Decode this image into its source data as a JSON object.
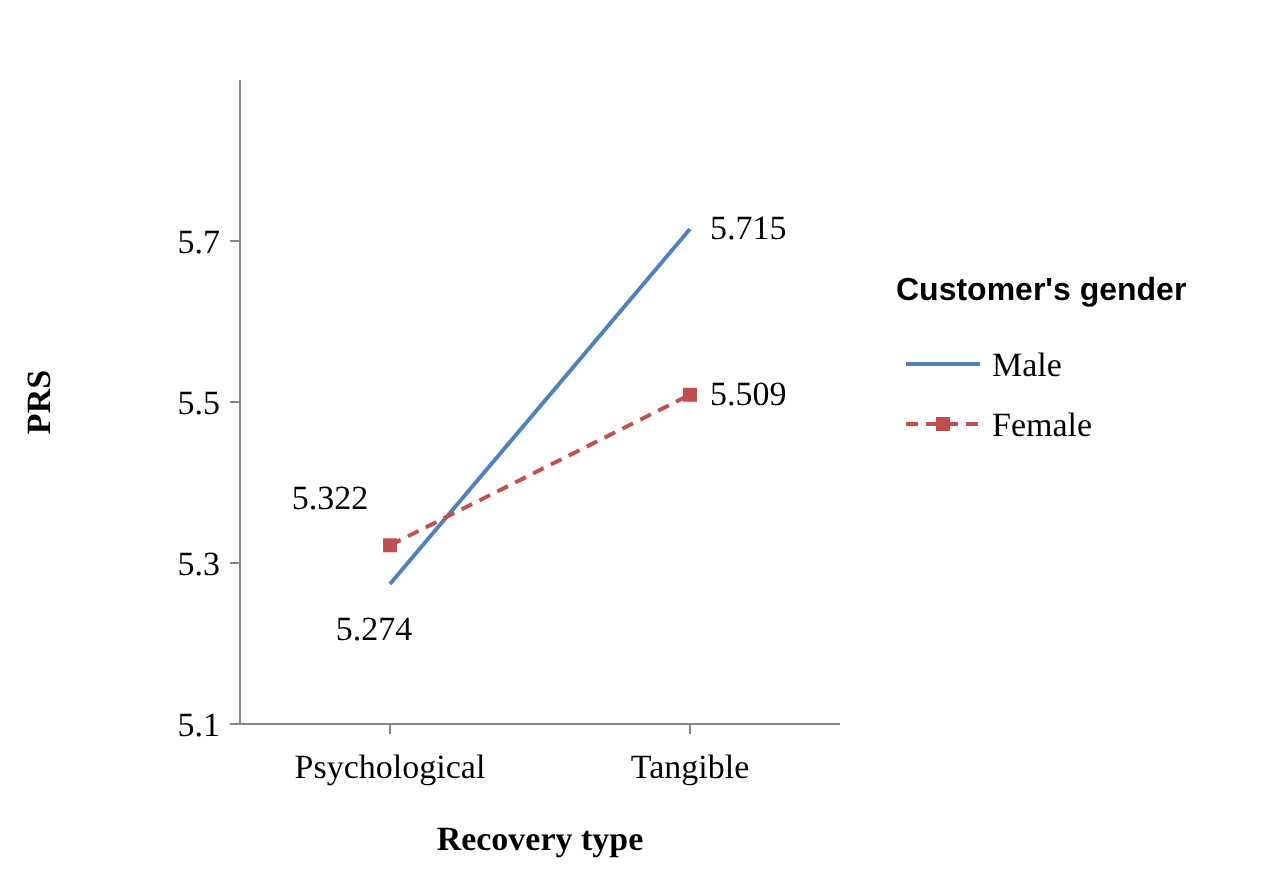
{
  "chart_data": {
    "type": "line",
    "xlabel": "Recovery type",
    "ylabel": "PRS",
    "legend_title": "Customer's gender",
    "categories": [
      "Psychological",
      "Tangible"
    ],
    "series": [
      {
        "name": "Male",
        "color": "#4f81bd",
        "values": [
          5.274,
          5.715
        ],
        "marker": "none",
        "line_style": "solid"
      },
      {
        "name": "Female",
        "color": "#c0504d",
        "values": [
          5.322,
          5.509
        ],
        "marker": "square",
        "line_style": "dashed"
      }
    ],
    "ylim": [
      5.1,
      5.9
    ],
    "yticks": [
      5.1,
      5.3,
      5.5,
      5.7
    ],
    "grid": false,
    "legend": "right",
    "data_labels": true
  }
}
